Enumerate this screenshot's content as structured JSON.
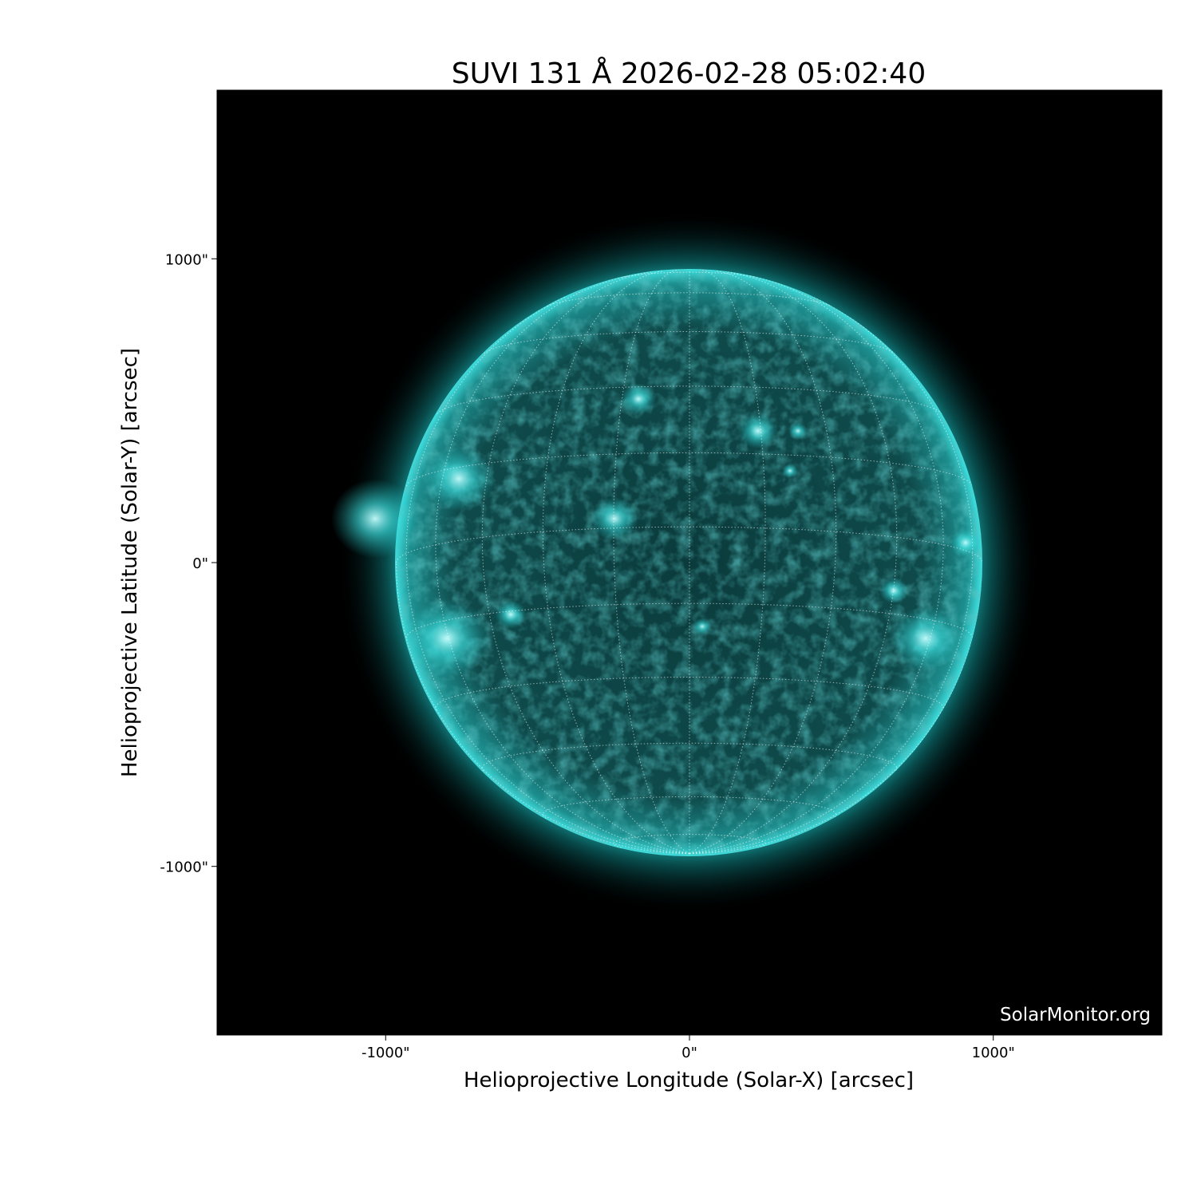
{
  "chart_data": {
    "type": "heatmap",
    "title": "SUVI 131 Å 2026-02-28 05:02:40",
    "xlabel": "Helioprojective Longitude (Solar-X) [arcsec]",
    "ylabel": "Helioprojective Latitude (Solar-Y) [arcsec]",
    "xlim": [
      -1555,
      1555
    ],
    "ylim": [
      -1555,
      1555
    ],
    "x_ticks": [
      -1000,
      0,
      1000
    ],
    "x_tick_labels": [
      "-1000\"",
      "0\"",
      "1000\""
    ],
    "y_ticks": [
      1000,
      0,
      -1000
    ],
    "y_tick_labels": [
      "1000\"",
      "0\"",
      "-1000\""
    ],
    "solar_radius_arcsec": 965,
    "grid": "heliographic, 15° spacing, dotted white",
    "colormap_color": "#19e6e6",
    "background_color": "#000000",
    "watermark": "SolarMonitor.org"
  }
}
